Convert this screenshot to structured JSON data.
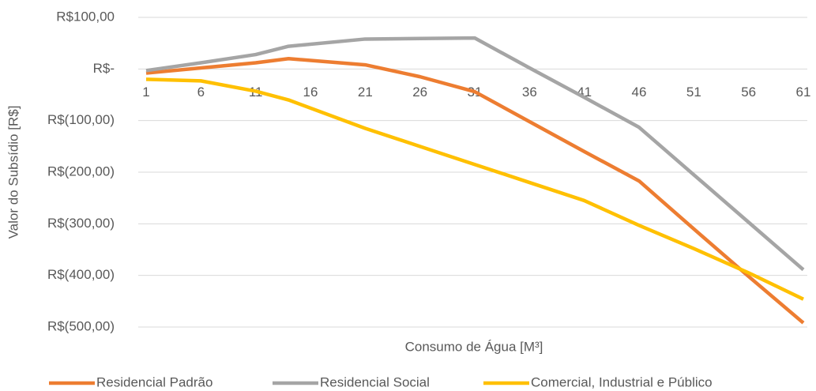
{
  "chart_data": {
    "type": "line",
    "x_label": "Consumo de Água [M³]",
    "y_label": "Valor do Subsídio [R$]",
    "x": [
      1,
      6,
      11,
      14,
      21,
      26,
      31,
      36,
      41,
      46,
      51,
      56,
      61
    ],
    "xlim": [
      1,
      61
    ],
    "xticks": [
      1,
      6,
      11,
      16,
      21,
      26,
      31,
      36,
      41,
      46,
      51,
      56,
      61
    ],
    "ylim": [
      -500,
      100
    ],
    "yticks": [
      {
        "value": 100,
        "label": "R$100,00"
      },
      {
        "value": 0,
        "label": "R$-"
      },
      {
        "value": -100,
        "label": "R$(100,00)"
      },
      {
        "value": -200,
        "label": "R$(200,00)"
      },
      {
        "value": -300,
        "label": "R$(300,00)"
      },
      {
        "value": -400,
        "label": "R$(400,00)"
      },
      {
        "value": -500,
        "label": "R$(500,00)"
      }
    ],
    "grid": true,
    "legend": "bottom",
    "series": [
      {
        "name": "Residencial Padrão",
        "color": "#ed7d31",
        "values": [
          -8,
          2,
          12,
          20,
          8,
          -15,
          -44,
          -102,
          -160,
          -217,
          -310,
          -402,
          -492
        ]
      },
      {
        "name": "Residencial Social",
        "color": "#a5a5a5",
        "values": [
          -3,
          12,
          28,
          44,
          58,
          59,
          60,
          2,
          -55,
          -113,
          -205,
          -297,
          -389
        ]
      },
      {
        "name": "Comercial, Industrial e Público",
        "color": "#ffc000",
        "values": [
          -20,
          -23,
          -43,
          -60,
          -115,
          -150,
          -185,
          -220,
          -255,
          -303,
          -348,
          -395,
          -446
        ]
      }
    ]
  }
}
